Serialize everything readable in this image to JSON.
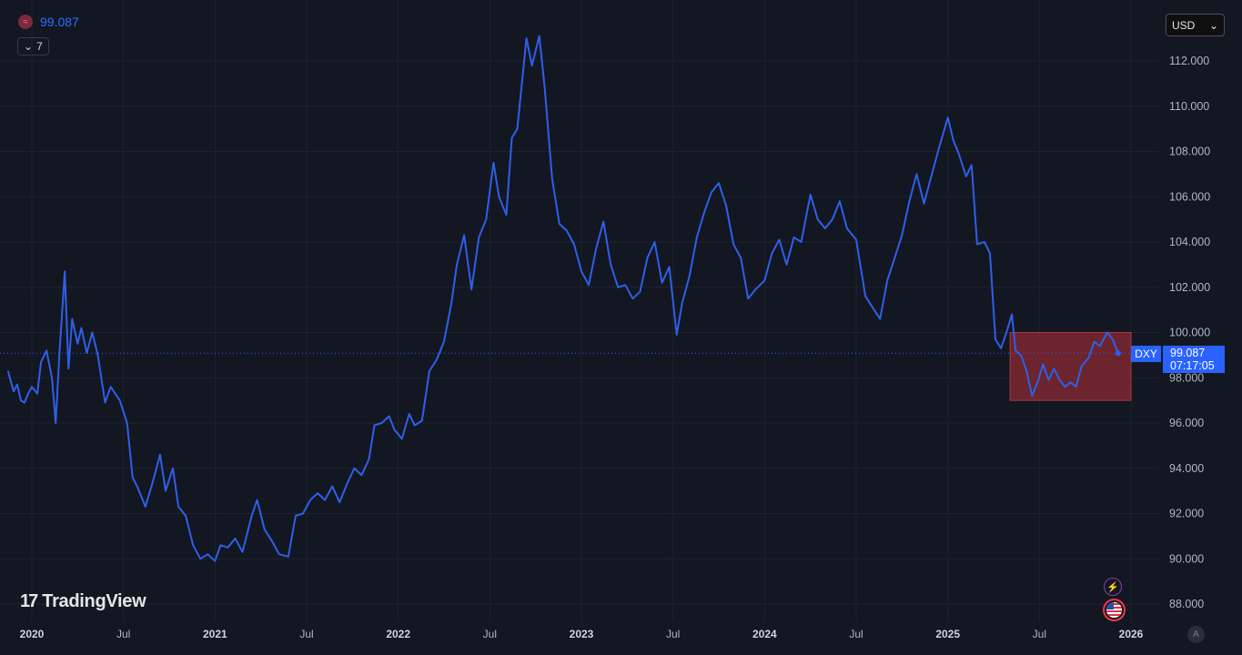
{
  "legend": {
    "icon": "currency-index-icon",
    "value": "99.087",
    "value_color": "#2f6bff"
  },
  "collapse": {
    "chevron": "chevron-down-icon",
    "count": "7"
  },
  "currency_select": {
    "label": "USD",
    "icon": "chevron-down-icon"
  },
  "logo": {
    "text": "TradingView"
  },
  "price_label": {
    "symbol": "DXY",
    "price": "99.087",
    "countdown": "07:17:05"
  },
  "icons": {
    "flash": "flash-icon",
    "flag": "us-flag-icon",
    "auto_scale": "A"
  },
  "colors": {
    "background": "#131722",
    "line": "#2f5fe8",
    "highlight": "#8b2a33",
    "grid": "#1e222d"
  },
  "chart_data": {
    "type": "line",
    "series": [
      {
        "name": "DXY"
      }
    ],
    "ylim": [
      87.5,
      113.4
    ],
    "y_ticks": [
      "112.000",
      "110.000",
      "108.000",
      "106.000",
      "104.000",
      "102.000",
      "100.000",
      "98.000",
      "96.000",
      "94.000",
      "92.000",
      "90.000",
      "88.000"
    ],
    "x_ticks": [
      {
        "label": "2020",
        "t": 2020.0,
        "year": true
      },
      {
        "label": "Jul",
        "t": 2020.5,
        "year": false
      },
      {
        "label": "2021",
        "t": 2021.0,
        "year": true
      },
      {
        "label": "Jul",
        "t": 2021.5,
        "year": false
      },
      {
        "label": "2022",
        "t": 2022.0,
        "year": true
      },
      {
        "label": "Jul",
        "t": 2022.5,
        "year": false
      },
      {
        "label": "2023",
        "t": 2023.0,
        "year": true
      },
      {
        "label": "Jul",
        "t": 2023.5,
        "year": false
      },
      {
        "label": "2024",
        "t": 2024.0,
        "year": true
      },
      {
        "label": "Jul",
        "t": 2024.5,
        "year": false
      },
      {
        "label": "2025",
        "t": 2025.0,
        "year": true
      },
      {
        "label": "Jul",
        "t": 2025.5,
        "year": false
      },
      {
        "label": "2026",
        "t": 2026.0,
        "year": true
      }
    ],
    "current_value": 99.087,
    "highlight_box": {
      "t_start": 2025.34,
      "t_end": 2026.0,
      "y_low": 97.0,
      "y_high": 100.0
    },
    "points": [
      [
        2019.87,
        98.3
      ],
      [
        2019.9,
        97.4
      ],
      [
        2019.92,
        97.7
      ],
      [
        2019.94,
        97.0
      ],
      [
        2019.96,
        96.9
      ],
      [
        2019.98,
        97.3
      ],
      [
        2020.0,
        97.6
      ],
      [
        2020.03,
        97.3
      ],
      [
        2020.05,
        98.7
      ],
      [
        2020.08,
        99.2
      ],
      [
        2020.11,
        98.0
      ],
      [
        2020.13,
        96.0
      ],
      [
        2020.15,
        99.0
      ],
      [
        2020.18,
        102.7
      ],
      [
        2020.2,
        98.4
      ],
      [
        2020.22,
        100.6
      ],
      [
        2020.25,
        99.5
      ],
      [
        2020.27,
        100.2
      ],
      [
        2020.3,
        99.1
      ],
      [
        2020.33,
        100.0
      ],
      [
        2020.36,
        99.0
      ],
      [
        2020.4,
        96.9
      ],
      [
        2020.43,
        97.6
      ],
      [
        2020.48,
        97.0
      ],
      [
        2020.52,
        96.0
      ],
      [
        2020.55,
        93.6
      ],
      [
        2020.58,
        93.1
      ],
      [
        2020.62,
        92.3
      ],
      [
        2020.66,
        93.4
      ],
      [
        2020.7,
        94.6
      ],
      [
        2020.73,
        93.0
      ],
      [
        2020.77,
        94.0
      ],
      [
        2020.8,
        92.3
      ],
      [
        2020.84,
        91.9
      ],
      [
        2020.88,
        90.6
      ],
      [
        2020.92,
        90.0
      ],
      [
        2020.96,
        90.2
      ],
      [
        2021.0,
        89.9
      ],
      [
        2021.03,
        90.6
      ],
      [
        2021.07,
        90.5
      ],
      [
        2021.11,
        90.9
      ],
      [
        2021.15,
        90.3
      ],
      [
        2021.2,
        91.9
      ],
      [
        2021.23,
        92.6
      ],
      [
        2021.27,
        91.3
      ],
      [
        2021.31,
        90.8
      ],
      [
        2021.35,
        90.2
      ],
      [
        2021.4,
        90.1
      ],
      [
        2021.44,
        91.9
      ],
      [
        2021.48,
        92.0
      ],
      [
        2021.52,
        92.6
      ],
      [
        2021.56,
        92.9
      ],
      [
        2021.6,
        92.6
      ],
      [
        2021.64,
        93.2
      ],
      [
        2021.68,
        92.5
      ],
      [
        2021.72,
        93.3
      ],
      [
        2021.76,
        94.0
      ],
      [
        2021.8,
        93.7
      ],
      [
        2021.84,
        94.4
      ],
      [
        2021.87,
        95.9
      ],
      [
        2021.91,
        96.0
      ],
      [
        2021.95,
        96.3
      ],
      [
        2021.98,
        95.7
      ],
      [
        2022.02,
        95.3
      ],
      [
        2022.06,
        96.4
      ],
      [
        2022.09,
        95.9
      ],
      [
        2022.13,
        96.1
      ],
      [
        2022.17,
        98.3
      ],
      [
        2022.21,
        98.8
      ],
      [
        2022.25,
        99.6
      ],
      [
        2022.29,
        101.3
      ],
      [
        2022.32,
        103.0
      ],
      [
        2022.36,
        104.3
      ],
      [
        2022.4,
        101.9
      ],
      [
        2022.44,
        104.2
      ],
      [
        2022.48,
        105.0
      ],
      [
        2022.52,
        107.5
      ],
      [
        2022.55,
        106.0
      ],
      [
        2022.59,
        105.2
      ],
      [
        2022.62,
        108.6
      ],
      [
        2022.65,
        109.0
      ],
      [
        2022.7,
        113.0
      ],
      [
        2022.73,
        111.8
      ],
      [
        2022.77,
        113.1
      ],
      [
        2022.8,
        110.8
      ],
      [
        2022.84,
        106.8
      ],
      [
        2022.88,
        104.8
      ],
      [
        2022.92,
        104.5
      ],
      [
        2022.96,
        103.9
      ],
      [
        2023.0,
        102.7
      ],
      [
        2023.04,
        102.1
      ],
      [
        2023.08,
        103.7
      ],
      [
        2023.12,
        104.9
      ],
      [
        2023.16,
        103.0
      ],
      [
        2023.2,
        102.0
      ],
      [
        2023.24,
        102.1
      ],
      [
        2023.28,
        101.5
      ],
      [
        2023.32,
        101.8
      ],
      [
        2023.36,
        103.3
      ],
      [
        2023.4,
        104.0
      ],
      [
        2023.44,
        102.2
      ],
      [
        2023.48,
        102.9
      ],
      [
        2023.52,
        99.9
      ],
      [
        2023.55,
        101.3
      ],
      [
        2023.59,
        102.5
      ],
      [
        2023.63,
        104.2
      ],
      [
        2023.67,
        105.3
      ],
      [
        2023.71,
        106.2
      ],
      [
        2023.75,
        106.6
      ],
      [
        2023.79,
        105.6
      ],
      [
        2023.83,
        103.9
      ],
      [
        2023.87,
        103.3
      ],
      [
        2023.91,
        101.5
      ],
      [
        2023.95,
        101.9
      ],
      [
        2024.0,
        102.3
      ],
      [
        2024.04,
        103.5
      ],
      [
        2024.08,
        104.1
      ],
      [
        2024.12,
        103.0
      ],
      [
        2024.16,
        104.2
      ],
      [
        2024.2,
        104.0
      ],
      [
        2024.25,
        106.1
      ],
      [
        2024.29,
        105.0
      ],
      [
        2024.33,
        104.6
      ],
      [
        2024.37,
        105.0
      ],
      [
        2024.41,
        105.8
      ],
      [
        2024.45,
        104.6
      ],
      [
        2024.5,
        104.1
      ],
      [
        2024.55,
        101.6
      ],
      [
        2024.59,
        101.1
      ],
      [
        2024.63,
        100.6
      ],
      [
        2024.67,
        102.3
      ],
      [
        2024.71,
        103.3
      ],
      [
        2024.75,
        104.3
      ],
      [
        2024.79,
        105.8
      ],
      [
        2024.83,
        107.0
      ],
      [
        2024.87,
        105.7
      ],
      [
        2024.91,
        106.9
      ],
      [
        2024.95,
        108.1
      ],
      [
        2025.0,
        109.5
      ],
      [
        2025.03,
        108.5
      ],
      [
        2025.06,
        107.9
      ],
      [
        2025.1,
        106.9
      ],
      [
        2025.13,
        107.4
      ],
      [
        2025.16,
        103.9
      ],
      [
        2025.2,
        104.0
      ],
      [
        2025.23,
        103.5
      ],
      [
        2025.26,
        99.7
      ],
      [
        2025.29,
        99.3
      ],
      [
        2025.32,
        100.0
      ],
      [
        2025.35,
        100.8
      ],
      [
        2025.37,
        99.2
      ],
      [
        2025.4,
        99.0
      ],
      [
        2025.43,
        98.3
      ],
      [
        2025.46,
        97.2
      ],
      [
        2025.49,
        97.8
      ],
      [
        2025.52,
        98.6
      ],
      [
        2025.55,
        97.9
      ],
      [
        2025.58,
        98.4
      ],
      [
        2025.61,
        97.9
      ],
      [
        2025.64,
        97.6
      ],
      [
        2025.67,
        97.8
      ],
      [
        2025.7,
        97.6
      ],
      [
        2025.73,
        98.5
      ],
      [
        2025.77,
        98.9
      ],
      [
        2025.8,
        99.6
      ],
      [
        2025.83,
        99.4
      ],
      [
        2025.87,
        100.0
      ],
      [
        2025.9,
        99.7
      ],
      [
        2025.93,
        99.087
      ]
    ]
  }
}
